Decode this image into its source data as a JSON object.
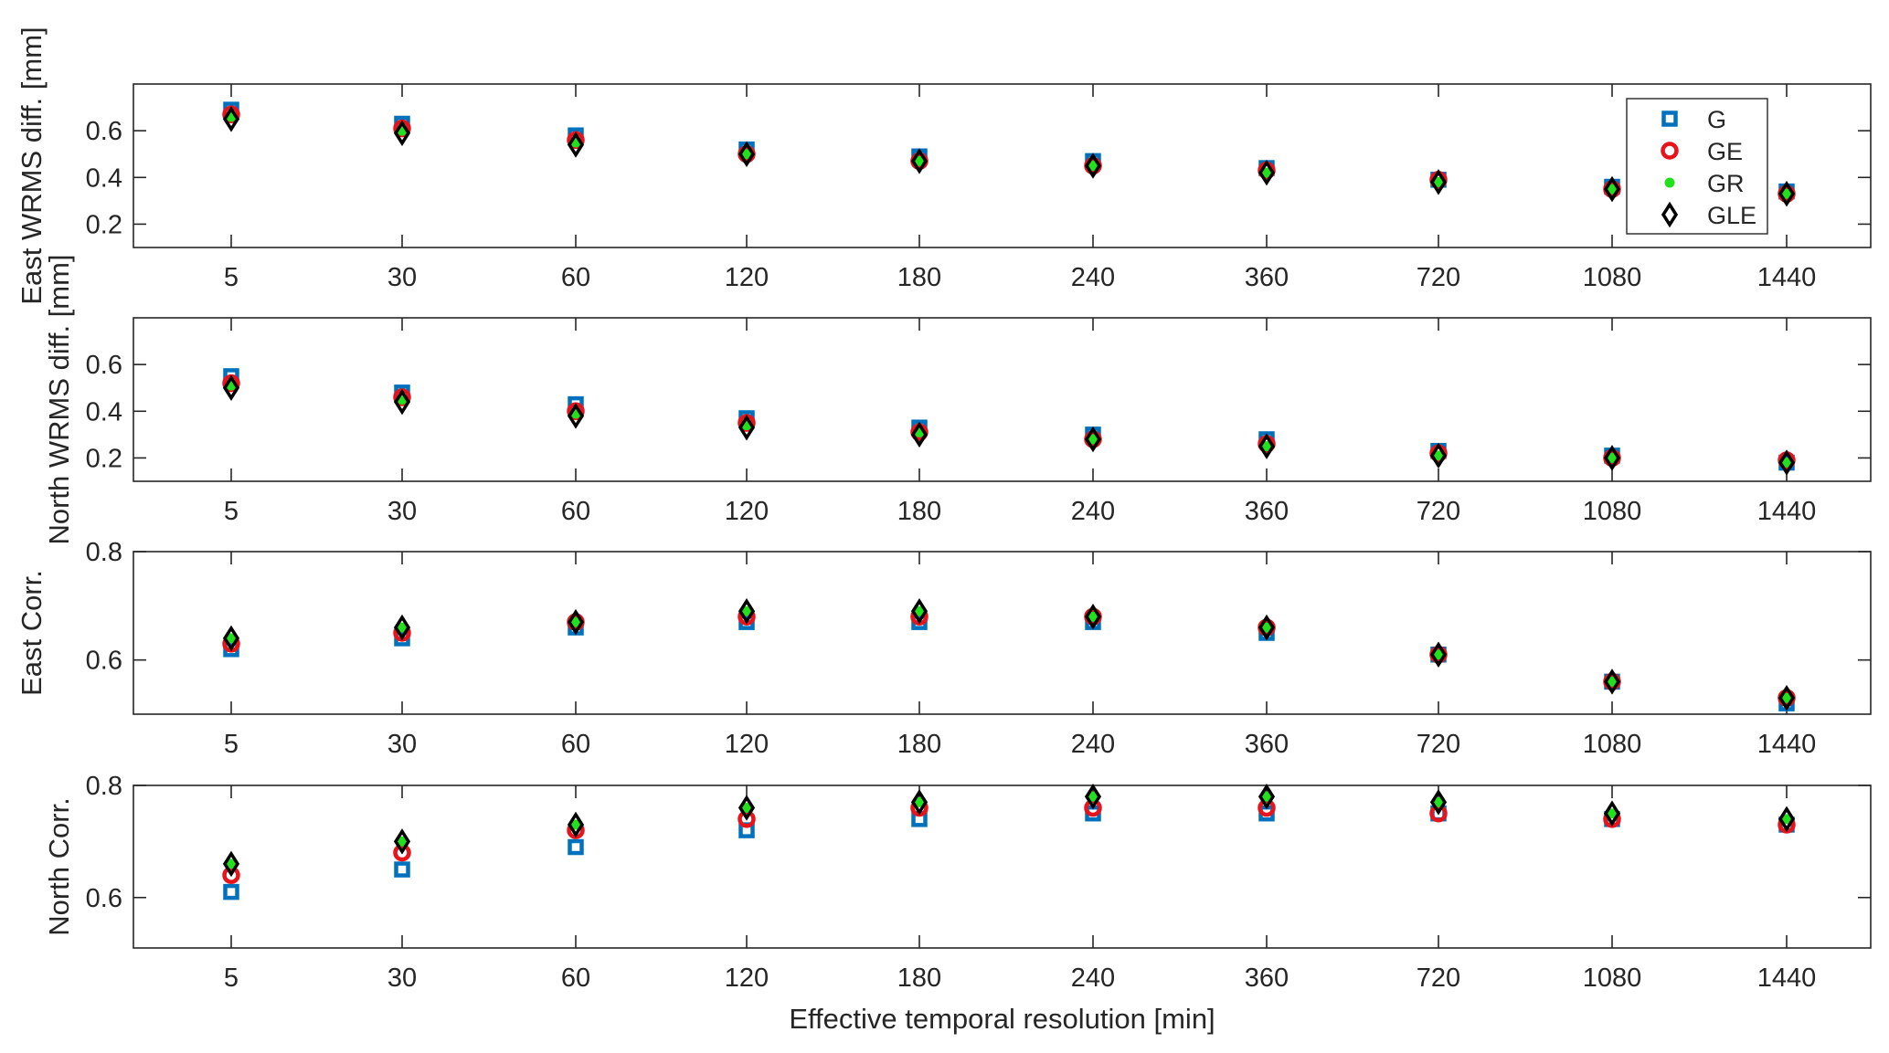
{
  "chart_data": [
    {
      "type": "scatter",
      "categories": [
        "5",
        "30",
        "60",
        "120",
        "180",
        "240",
        "360",
        "720",
        "1080",
        "1440"
      ],
      "xlabel": "",
      "ylabel": "East WRMS diff. [mm]",
      "ylim": [
        0.1,
        0.8
      ],
      "yticks": [
        "0.2",
        "0.4",
        "0.6"
      ],
      "legend": {
        "position": "top-right",
        "entries": [
          "G",
          "GE",
          "GR",
          "GLE"
        ]
      },
      "series": [
        {
          "name": "G",
          "values": [
            0.69,
            0.63,
            0.58,
            0.52,
            0.49,
            0.47,
            0.44,
            0.39,
            0.36,
            0.34
          ]
        },
        {
          "name": "GE",
          "values": [
            0.67,
            0.61,
            0.56,
            0.5,
            0.47,
            0.45,
            0.43,
            0.39,
            0.35,
            0.33
          ]
        },
        {
          "name": "GR",
          "values": [
            0.66,
            0.6,
            0.55,
            0.5,
            0.47,
            0.45,
            0.42,
            0.38,
            0.35,
            0.33
          ]
        },
        {
          "name": "GLE",
          "values": [
            0.65,
            0.59,
            0.54,
            0.5,
            0.47,
            0.45,
            0.42,
            0.38,
            0.35,
            0.33
          ]
        }
      ]
    },
    {
      "type": "scatter",
      "categories": [
        "5",
        "30",
        "60",
        "120",
        "180",
        "240",
        "360",
        "720",
        "1080",
        "1440"
      ],
      "xlabel": "",
      "ylabel": "North WRMS diff. [mm]",
      "ylim": [
        0.1,
        0.8
      ],
      "yticks": [
        "0.2",
        "0.4",
        "0.6"
      ],
      "series": [
        {
          "name": "G",
          "values": [
            0.55,
            0.48,
            0.43,
            0.37,
            0.33,
            0.3,
            0.28,
            0.23,
            0.21,
            0.18
          ]
        },
        {
          "name": "GE",
          "values": [
            0.52,
            0.46,
            0.4,
            0.35,
            0.31,
            0.28,
            0.26,
            0.22,
            0.2,
            0.19
          ]
        },
        {
          "name": "GR",
          "values": [
            0.51,
            0.45,
            0.39,
            0.34,
            0.31,
            0.28,
            0.25,
            0.21,
            0.2,
            0.18
          ]
        },
        {
          "name": "GLE",
          "values": [
            0.5,
            0.44,
            0.38,
            0.33,
            0.3,
            0.28,
            0.25,
            0.21,
            0.2,
            0.18
          ]
        }
      ]
    },
    {
      "type": "scatter",
      "categories": [
        "5",
        "30",
        "60",
        "120",
        "180",
        "240",
        "360",
        "720",
        "1080",
        "1440"
      ],
      "xlabel": "",
      "ylabel": "East Corr.",
      "ylim": [
        0.5,
        0.8
      ],
      "yticks": [
        "0.6",
        "0.8"
      ],
      "series": [
        {
          "name": "G",
          "values": [
            0.62,
            0.64,
            0.66,
            0.67,
            0.67,
            0.67,
            0.65,
            0.61,
            0.56,
            0.52
          ]
        },
        {
          "name": "GE",
          "values": [
            0.63,
            0.65,
            0.67,
            0.68,
            0.68,
            0.68,
            0.66,
            0.61,
            0.56,
            0.53
          ]
        },
        {
          "name": "GR",
          "values": [
            0.64,
            0.66,
            0.67,
            0.69,
            0.69,
            0.68,
            0.66,
            0.61,
            0.56,
            0.53
          ]
        },
        {
          "name": "GLE",
          "values": [
            0.64,
            0.66,
            0.67,
            0.69,
            0.69,
            0.68,
            0.66,
            0.61,
            0.56,
            0.53
          ]
        }
      ]
    },
    {
      "type": "scatter",
      "categories": [
        "5",
        "30",
        "60",
        "120",
        "180",
        "240",
        "360",
        "720",
        "1080",
        "1440"
      ],
      "xlabel": "Effective temporal resolution [min]",
      "ylabel": "North Corr.",
      "ylim": [
        0.51,
        0.8
      ],
      "yticks": [
        "0.6",
        "0.8"
      ],
      "series": [
        {
          "name": "G",
          "values": [
            0.61,
            0.65,
            0.69,
            0.72,
            0.74,
            0.75,
            0.75,
            0.75,
            0.74,
            0.73
          ]
        },
        {
          "name": "GE",
          "values": [
            0.64,
            0.68,
            0.72,
            0.74,
            0.76,
            0.76,
            0.76,
            0.75,
            0.74,
            0.73
          ]
        },
        {
          "name": "GR",
          "values": [
            0.66,
            0.7,
            0.73,
            0.76,
            0.77,
            0.78,
            0.78,
            0.77,
            0.75,
            0.74
          ]
        },
        {
          "name": "GLE",
          "values": [
            0.66,
            0.7,
            0.73,
            0.76,
            0.77,
            0.78,
            0.78,
            0.77,
            0.75,
            0.74
          ]
        }
      ]
    }
  ],
  "colors": {
    "G": "#0072BD",
    "GE": "#E8141B",
    "GR": "#22E01E",
    "GLE": "#000000",
    "axis": "#262626"
  },
  "markers": {
    "G": "square",
    "GE": "circle",
    "GR": "dot",
    "GLE": "diamond"
  }
}
